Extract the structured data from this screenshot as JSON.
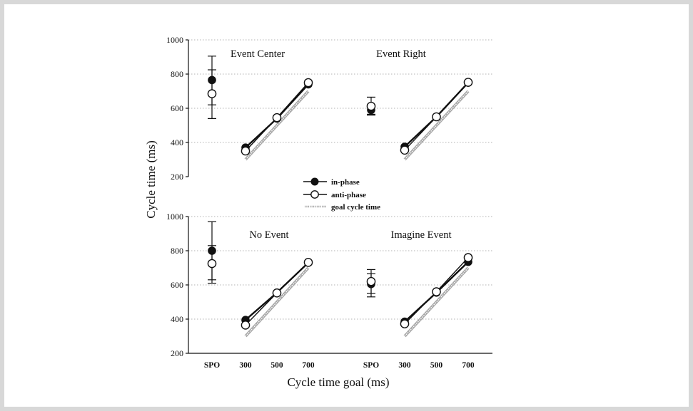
{
  "chart_data": [
    {
      "type": "line",
      "title": "Event Center",
      "series": [
        {
          "name": "in-phase",
          "x": [
            300,
            500,
            700
          ],
          "values": [
            370,
            540,
            740
          ],
          "spo": 765,
          "spo_err": [
            620,
            905
          ]
        },
        {
          "name": "anti-phase",
          "x": [
            300,
            500,
            700
          ],
          "values": [
            350,
            545,
            750
          ],
          "spo": 685,
          "spo_err": [
            540,
            825
          ]
        }
      ]
    },
    {
      "type": "line",
      "title": "Event Right",
      "series": [
        {
          "name": "in-phase",
          "x": [
            300,
            500,
            700
          ],
          "values": [
            375,
            550,
            750
          ],
          "spo": 590,
          "spo_err": [
            560,
            620
          ]
        },
        {
          "name": "anti-phase",
          "x": [
            300,
            500,
            700
          ],
          "values": [
            355,
            550,
            752
          ],
          "spo": 612,
          "spo_err": [
            565,
            665
          ]
        }
      ]
    },
    {
      "type": "line",
      "title": "No Event",
      "series": [
        {
          "name": "in-phase",
          "x": [
            300,
            500,
            700
          ],
          "values": [
            395,
            555,
            730
          ],
          "spo": 800,
          "spo_err": [
            630,
            970
          ]
        },
        {
          "name": "anti-phase",
          "x": [
            300,
            500,
            700
          ],
          "values": [
            365,
            553,
            732
          ],
          "spo": 725,
          "spo_err": [
            610,
            830
          ]
        }
      ]
    },
    {
      "type": "line",
      "title": "Imagine Event",
      "series": [
        {
          "name": "in-phase",
          "x": [
            300,
            500,
            700
          ],
          "values": [
            385,
            555,
            735
          ],
          "spo": 605,
          "spo_err": [
            530,
            665
          ]
        },
        {
          "name": "anti-phase",
          "x": [
            300,
            500,
            700
          ],
          "values": [
            372,
            560,
            760
          ],
          "spo": 620,
          "spo_err": [
            550,
            690
          ]
        }
      ]
    }
  ],
  "axes": {
    "ylabel": "Cycle time (ms)",
    "xlabel": "Cycle time goal (ms)",
    "yticks": [
      200,
      400,
      600,
      800,
      1000
    ],
    "ylim": [
      200,
      1000
    ],
    "xticks": [
      "SPO",
      "300",
      "500",
      "700"
    ],
    "goal_line": {
      "x": [
        300,
        700
      ],
      "y": [
        300,
        700
      ]
    },
    "grid": true
  },
  "legend": {
    "items": [
      {
        "label": "in-phase",
        "marker": "filled-circle"
      },
      {
        "label": "anti-phase",
        "marker": "open-circle"
      },
      {
        "label": "goal cycle time",
        "marker": "gray-line"
      }
    ],
    "position": "center"
  },
  "colors": {
    "ink": "#111111",
    "goal": "#a8a8a8",
    "grid": "#9a9a9a",
    "frame": "#d8d8d8"
  }
}
